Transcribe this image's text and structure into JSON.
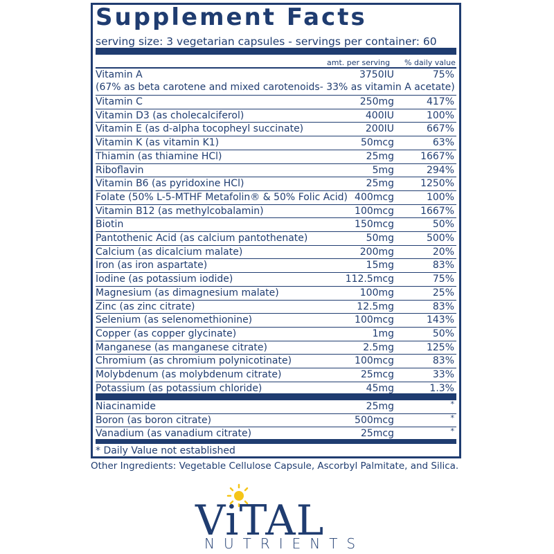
{
  "title": "Supplement Facts",
  "serving": "serving size:  3 vegetarian capsules - servings per container: 60",
  "headers": {
    "amount": "amt. per serving",
    "dv": "% daily value"
  },
  "vitamin_a": {
    "name": "Vitamin A",
    "amount": "3750IU",
    "dv": "75%",
    "note": "(67% as beta carotene and mixed carotenoids- 33% as vitamin A acetate)"
  },
  "nutrients": [
    {
      "name": "Vitamin C",
      "amount": "250mg",
      "dv": "417%"
    },
    {
      "name": "Vitamin D3 (as cholecalciferol)",
      "amount": "400IU",
      "dv": "100%"
    },
    {
      "name": "Vitamin E (as d-alpha tocopheyl succinate)",
      "amount": "200IU",
      "dv": "667%"
    },
    {
      "name": "Vitamin K (as vitamin K1)",
      "amount": "50mcg",
      "dv": "63%"
    },
    {
      "name": "Thiamin (as thiamine HCl)",
      "amount": "25mg",
      "dv": "1667%"
    },
    {
      "name": "Riboflavin",
      "amount": "5mg",
      "dv": "294%"
    },
    {
      "name": "Vitamin B6 (as pyridoxine HCl)",
      "amount": "25mg",
      "dv": "1250%"
    },
    {
      "name": "Folate (50% L-5-MTHF Metafolin® & 50% Folic Acid)",
      "amount": "400mcg",
      "dv": "100%"
    },
    {
      "name": "Vitamin B12 (as methylcobalamin)",
      "amount": "100mcg",
      "dv": "1667%"
    },
    {
      "name": "Biotin",
      "amount": "150mcg",
      "dv": "50%"
    },
    {
      "name": "Pantothenic Acid (as calcium pantothenate)",
      "amount": "50mg",
      "dv": "500%"
    },
    {
      "name": "Calcium (as dicalcium malate)",
      "amount": "200mg",
      "dv": "20%"
    },
    {
      "name": "Iron (as iron aspartate)",
      "amount": "15mg",
      "dv": "83%"
    },
    {
      "name": "Iodine (as potassium iodide)",
      "amount": "112.5mcg",
      "dv": "75%"
    },
    {
      "name": "Magnesium (as dimagnesium malate)",
      "amount": "100mg",
      "dv": "25%"
    },
    {
      "name": "Zinc (as zinc citrate)",
      "amount": "12.5mg",
      "dv": "83%"
    },
    {
      "name": "Selenium (as selenomethionine)",
      "amount": "100mcg",
      "dv": "143%"
    },
    {
      "name": "Copper (as copper glycinate)",
      "amount": "1mg",
      "dv": "50%"
    },
    {
      "name": "Manganese (as manganese citrate)",
      "amount": "2.5mg",
      "dv": "125%"
    },
    {
      "name": "Chromium (as chromium polynicotinate)",
      "amount": "100mcg",
      "dv": "83%"
    },
    {
      "name": "Molybdenum (as molybdenum citrate)",
      "amount": "25mcg",
      "dv": "33%"
    },
    {
      "name": "Potassium (as potassium chloride)",
      "amount": "45mg",
      "dv": "1.3%"
    }
  ],
  "other_nutrients": [
    {
      "name": "Niacinamide",
      "amount": "25mg",
      "dv": "*"
    },
    {
      "name": "Boron (as boron citrate)",
      "amount": "500mcg",
      "dv": "*"
    },
    {
      "name": "Vanadium (as vanadium citrate)",
      "amount": "25mcg",
      "dv": "*"
    }
  ],
  "footnote": "* Daily Value not established",
  "other_ingredients": "Other Ingredients: Vegetable Cellulose Capsule, Ascorbyl Palmitate, and Silica.",
  "logo": {
    "word1": "ViTAL",
    "word2": "NUTRIENTS"
  },
  "colors": {
    "navy": "#1f3c70",
    "sun": "#f5c518"
  }
}
